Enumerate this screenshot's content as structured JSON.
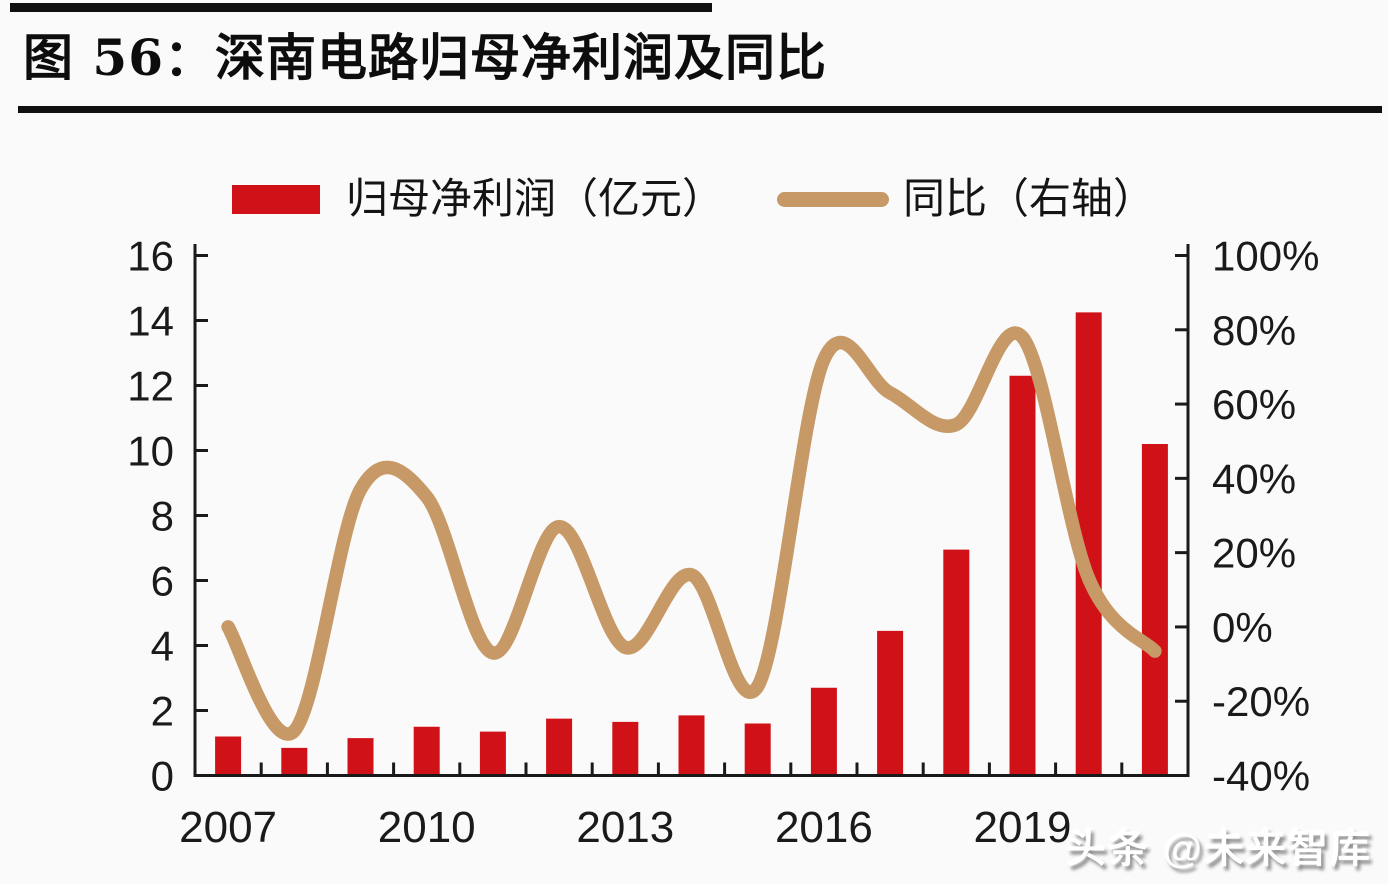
{
  "title": "图 56：深南电路归母净利润及同比",
  "watermark": "头条 @未来智库",
  "legend": {
    "bar_label": "归母净利润（亿元）",
    "line_label": "同比（右轴）"
  },
  "colors": {
    "bar": "#d01117",
    "line": "#c69966",
    "axis": "#1a1a1a",
    "rule": "#101010",
    "background": "#fbfafa"
  },
  "chart_data": {
    "type": "combo-bar-line",
    "title": "图 56：深南电路归母净利润及同比",
    "categories": [
      "2007",
      "2008",
      "2009",
      "2010",
      "2011",
      "2012",
      "2013",
      "2014",
      "2015",
      "2016",
      "2017",
      "2018",
      "2019",
      "2020",
      "2021"
    ],
    "x_axis": {
      "tick_label_indices": [
        0,
        3,
        6,
        9,
        12
      ],
      "tick_labels": [
        "2007",
        "2010",
        "2013",
        "2016",
        "2019"
      ]
    },
    "series": [
      {
        "name": "归母净利润（亿元）",
        "type": "bar",
        "axis": "left",
        "color": "#d01117",
        "values": [
          1.2,
          0.85,
          1.15,
          1.5,
          1.35,
          1.75,
          1.65,
          1.85,
          1.6,
          2.7,
          4.45,
          6.95,
          12.3,
          14.25,
          10.2
        ]
      },
      {
        "name": "同比（右轴）",
        "type": "line",
        "axis": "right",
        "smooth": true,
        "unit": "%",
        "color": "#c69966",
        "values": [
          0,
          -28,
          37,
          35,
          -7,
          27,
          -5.5,
          14,
          -16,
          72,
          63,
          54.5,
          78,
          13,
          -6.5
        ]
      }
    ],
    "left_axis": {
      "min": 0,
      "max": 16,
      "step": 2,
      "tick_labels": [
        "0",
        "2",
        "4",
        "6",
        "8",
        "10",
        "12",
        "14",
        "16"
      ]
    },
    "right_axis": {
      "min": -40,
      "max": 100,
      "step": 20,
      "tick_labels": [
        "-40%",
        "-20%",
        "0%",
        "20%",
        "40%",
        "60%",
        "80%",
        "100%"
      ]
    },
    "legend_position": "top",
    "grid": false
  }
}
